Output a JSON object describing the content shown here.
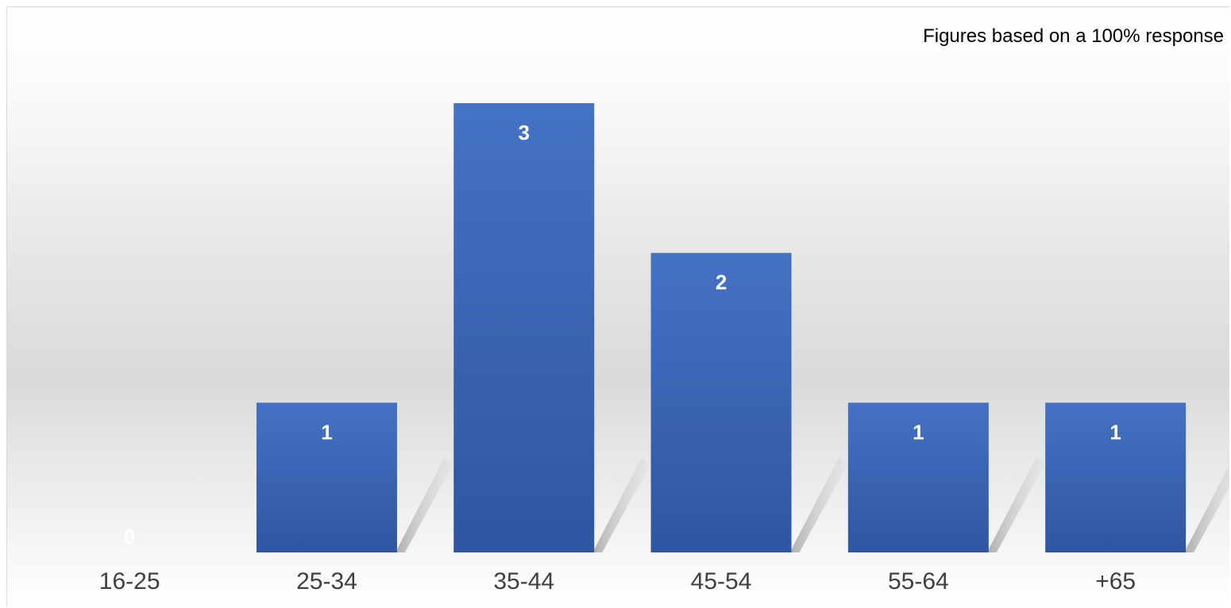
{
  "chart_data": {
    "type": "bar",
    "title": "",
    "note": "Figures based on a 100% response",
    "xlabel": "",
    "ylabel": "",
    "categories": [
      "16-25",
      "25-34",
      "35-44",
      "45-54",
      "55-64",
      "+65"
    ],
    "values": [
      0,
      1,
      3,
      2,
      1,
      1
    ],
    "data_labels": [
      "0",
      "1",
      "3",
      "2",
      "1",
      "1"
    ],
    "ylim": [
      0,
      3.3
    ],
    "grid": false,
    "legend": "none",
    "colors": {
      "bar_top": "#4472C4",
      "bar_bottom": "#2F56A0",
      "background_top": "#ffffff",
      "background_mid": "#d9d9d9",
      "shadow": "#b3b3b3"
    }
  }
}
